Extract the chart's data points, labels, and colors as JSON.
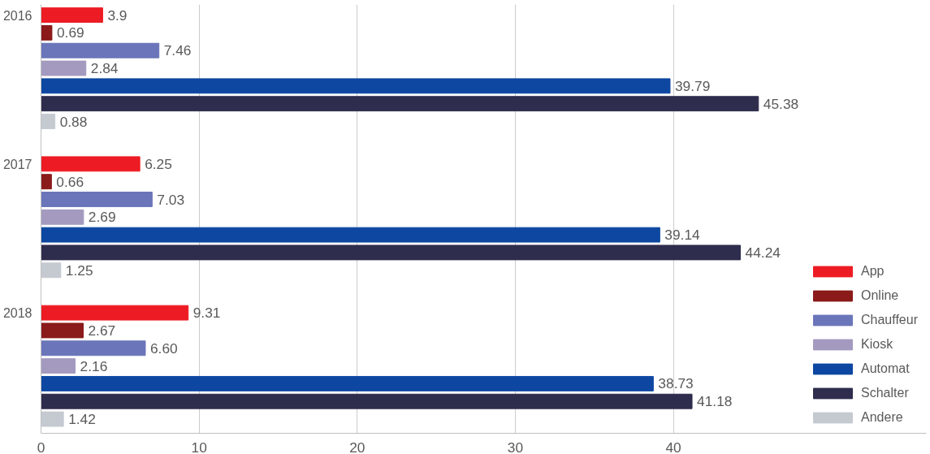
{
  "chart_data": {
    "type": "bar",
    "orientation": "horizontal",
    "categories": [
      "2016",
      "2017",
      "2018"
    ],
    "series": [
      {
        "name": "App",
        "color": "#ed1c24",
        "values": [
          3.9,
          6.25,
          9.31
        ],
        "value_labels": [
          "3.9",
          "6.25",
          "9.31"
        ]
      },
      {
        "name": "Online",
        "color": "#8b1a1a",
        "values": [
          0.69,
          0.66,
          2.67
        ],
        "value_labels": [
          "0.69",
          "0.66",
          "2.67"
        ]
      },
      {
        "name": "Chauffeur",
        "color": "#6b75b9",
        "values": [
          7.46,
          7.03,
          6.6
        ],
        "value_labels": [
          "7.46",
          "7.03",
          "6.60"
        ]
      },
      {
        "name": "Kiosk",
        "color": "#a49abf",
        "values": [
          2.84,
          2.69,
          2.16
        ],
        "value_labels": [
          "2.84",
          "2.69",
          "2.16"
        ]
      },
      {
        "name": "Automat",
        "color": "#0d47a1",
        "values": [
          39.79,
          39.14,
          38.73
        ],
        "value_labels": [
          "39.79",
          "39.14",
          "38.73"
        ]
      },
      {
        "name": "Schalter",
        "color": "#2e2d4d",
        "values": [
          45.38,
          44.24,
          41.18
        ],
        "value_labels": [
          "45.38",
          "44.24",
          "41.18"
        ]
      },
      {
        "name": "Andere",
        "color": "#c5cad1",
        "values": [
          0.88,
          1.25,
          1.42
        ],
        "value_labels": [
          "0.88",
          "1.25",
          "1.42"
        ]
      }
    ],
    "xlim": [
      0,
      56
    ],
    "xticks": [
      0,
      10,
      20,
      30,
      40
    ],
    "grid": "x",
    "legend": "right"
  }
}
